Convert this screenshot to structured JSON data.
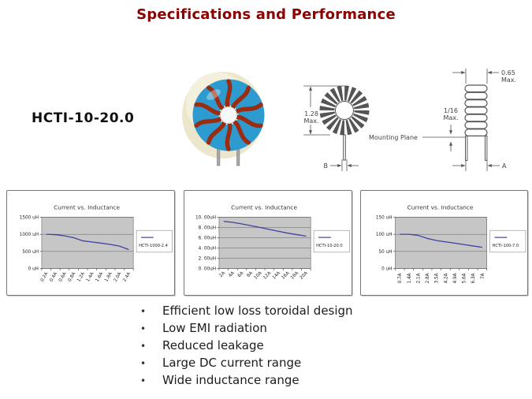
{
  "title": "Specifications and Performance",
  "part_number": "HCTI-10-20.0",
  "colors": {
    "title_accent": "#8B0000",
    "line": "#4040A0",
    "plot_bg": "#C6C6C6",
    "core_blue": "#2D9AD0",
    "winding_copper": "#9C2C10",
    "case_cream": "#ECE6CC"
  },
  "drawing": {
    "front_view": {
      "height_dim_line1": "1.28",
      "height_dim_line2": "Max.",
      "mounting_plane_label": "Mounting Plane",
      "lead_dim_label": "B"
    },
    "side_view": {
      "width_dim_line1": "0.65",
      "width_dim_line2": "Max.",
      "standoff_dim_line1": "1/16",
      "standoff_dim_line2": "Max.",
      "lead_dim_label": "A"
    }
  },
  "chart_data": [
    {
      "type": "line",
      "title": "Current vs. Inductance",
      "legend": "HCTI-1000-2.4",
      "categories": [
        "0.2A",
        "0.4A",
        "0.6A",
        "0.8A",
        "1.2A",
        "1.4A",
        "1.6A",
        "1.8A",
        "2.0A",
        "2.4A"
      ],
      "values": [
        1000,
        990,
        955,
        900,
        810,
        775,
        740,
        705,
        655,
        555
      ],
      "y_tick_labels": [
        "1500 uH",
        "1000 uH",
        "500 uH",
        "0 uH"
      ],
      "y_tick_values": [
        1500,
        1000,
        500,
        0
      ],
      "ylim": [
        0,
        1500
      ],
      "x_label_rotation": -60,
      "grid": true,
      "legend_position": "right"
    },
    {
      "type": "line",
      "title": "Current vs. Inductance",
      "legend": "HCTI-10-20.0",
      "categories": [
        "2A",
        "4A",
        "6A",
        "8A",
        "10A",
        "12A",
        "14A",
        "16A",
        "18A",
        "20A"
      ],
      "values": [
        9.2,
        9.0,
        8.7,
        8.35,
        8.0,
        7.6,
        7.25,
        6.9,
        6.6,
        6.3
      ],
      "y_tick_labels": [
        "10. 00uH",
        "8. 00uH",
        "6. 00uH",
        "4. 00uH",
        "2. 00uH",
        "0. 00uH"
      ],
      "y_tick_values": [
        10,
        8,
        6,
        4,
        2,
        0
      ],
      "ylim": [
        0,
        10
      ],
      "x_label_rotation": -45,
      "grid": true,
      "legend_position": "right"
    },
    {
      "type": "line",
      "title": "Current vs. Inductance",
      "legend": "HCTI-100-7.0",
      "categories": [
        "0.7A",
        "1.4A",
        "2.1A",
        "2.8A",
        "3.5A",
        "4.2A",
        "4.9A",
        "5.6A",
        "6.3A",
        "7A"
      ],
      "values": [
        100,
        100,
        97,
        88,
        82,
        78,
        74,
        70,
        66,
        62
      ],
      "y_tick_labels": [
        "150 uH",
        "100 uH",
        "50 uH",
        "0 uH"
      ],
      "y_tick_values": [
        150,
        100,
        50,
        0
      ],
      "ylim": [
        0,
        150
      ],
      "x_label_rotation": -90,
      "grid": true,
      "legend_position": "right"
    }
  ],
  "bullets": [
    "Efficient low loss toroidal design",
    "Low EMI radiation",
    "Reduced leakage",
    "Large DC current range",
    "Wide inductance range"
  ]
}
